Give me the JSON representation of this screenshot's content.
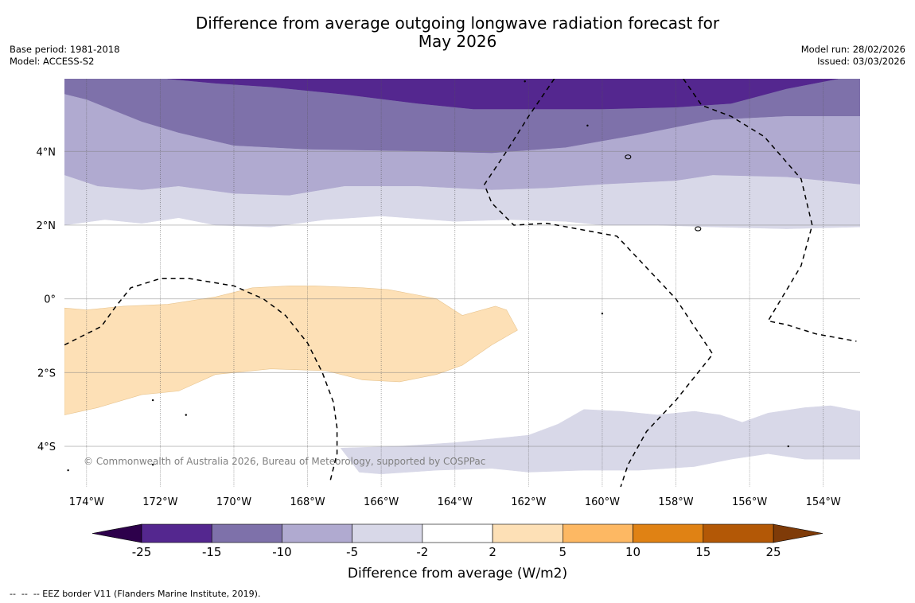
{
  "header": {
    "title_line1": "Difference from average outgoing longwave radiation forecast for",
    "title_line2": "May 2026",
    "base_period": "Base period: 1981-2018",
    "model": "Model: ACCESS-S2",
    "model_run": "Model run: 28/02/2026",
    "issued": "Issued: 03/03/2026"
  },
  "map": {
    "extent": {
      "lon_min": -174.6,
      "lon_max": -153.0,
      "lat_min": -5.1,
      "lat_max": 5.97
    },
    "lon_ticks": [
      {
        "value": -174,
        "label": "174°W"
      },
      {
        "value": -172,
        "label": "172°W"
      },
      {
        "value": -170,
        "label": "170°W"
      },
      {
        "value": -168,
        "label": "168°W"
      },
      {
        "value": -166,
        "label": "166°W"
      },
      {
        "value": -164,
        "label": "164°W"
      },
      {
        "value": -162,
        "label": "162°W"
      },
      {
        "value": -160,
        "label": "160°W"
      },
      {
        "value": -158,
        "label": "158°W"
      },
      {
        "value": -156,
        "label": "156°W"
      },
      {
        "value": -154,
        "label": "154°W"
      }
    ],
    "lat_ticks": [
      {
        "value": 4,
        "label": "4°N"
      },
      {
        "value": 2,
        "label": "2°N"
      },
      {
        "value": 0,
        "label": "0°"
      },
      {
        "value": -2,
        "label": "2°S"
      },
      {
        "value": -4,
        "label": "4°S"
      }
    ],
    "copyright": "© Commonwealth of Australia 2026, Bureau of Meteorology, supported by COSPPac",
    "regions": [
      {
        "name": "band-minus15-to-minus10",
        "class": "-15 to -10",
        "color": "#7e71aa",
        "points": [
          [
            -174.6,
            5.97
          ],
          [
            -153.0,
            5.97
          ],
          [
            -153.0,
            4.95
          ],
          [
            -155.0,
            4.95
          ],
          [
            -157.0,
            4.85
          ],
          [
            -159.0,
            4.45
          ],
          [
            -161.0,
            4.1
          ],
          [
            -163.0,
            3.95
          ],
          [
            -165.0,
            4.0
          ],
          [
            -168.0,
            4.05
          ],
          [
            -170.0,
            4.15
          ],
          [
            -171.5,
            4.5
          ],
          [
            -172.5,
            4.8
          ],
          [
            -174.0,
            5.4
          ],
          [
            -174.6,
            5.55
          ]
        ]
      },
      {
        "name": "band-minus25-to-minus15",
        "class": "-25 to -15",
        "color": "#54278f",
        "points": [
          [
            -171.8,
            5.97
          ],
          [
            -153.6,
            5.97
          ],
          [
            -155.0,
            5.7
          ],
          [
            -156.5,
            5.3
          ],
          [
            -158.0,
            5.2
          ],
          [
            -160.0,
            5.15
          ],
          [
            -162.0,
            5.15
          ],
          [
            -163.5,
            5.15
          ],
          [
            -165.0,
            5.3
          ],
          [
            -167.0,
            5.55
          ],
          [
            -169.0,
            5.75
          ],
          [
            -170.5,
            5.85
          ]
        ]
      },
      {
        "name": "band-minus10-to-minus5",
        "class": "-10 to -5",
        "color": "#b0aad0",
        "points": [
          [
            -174.6,
            5.55
          ],
          [
            -174.0,
            5.4
          ],
          [
            -172.5,
            4.8
          ],
          [
            -171.5,
            4.5
          ],
          [
            -170.0,
            4.15
          ],
          [
            -168.0,
            4.05
          ],
          [
            -165.0,
            4.0
          ],
          [
            -163.0,
            3.95
          ],
          [
            -161.0,
            4.1
          ],
          [
            -159.0,
            4.45
          ],
          [
            -157.0,
            4.85
          ],
          [
            -155.0,
            4.95
          ],
          [
            -153.0,
            4.95
          ],
          [
            -153.0,
            3.1
          ],
          [
            -155.0,
            3.3
          ],
          [
            -157.0,
            3.35
          ],
          [
            -158.0,
            3.2
          ],
          [
            -160.0,
            3.1
          ],
          [
            -161.5,
            3.0
          ],
          [
            -163.0,
            2.95
          ],
          [
            -165.0,
            3.05
          ],
          [
            -167.0,
            3.05
          ],
          [
            -168.5,
            2.8
          ],
          [
            -170.0,
            2.85
          ],
          [
            -171.5,
            3.05
          ],
          [
            -172.5,
            2.95
          ],
          [
            -173.7,
            3.05
          ],
          [
            -174.6,
            3.35
          ]
        ]
      },
      {
        "name": "band-minus5-to-minus2-north",
        "class": "-5 to -2",
        "color": "#d8d8e8",
        "points": [
          [
            -174.6,
            3.35
          ],
          [
            -173.7,
            3.05
          ],
          [
            -172.5,
            2.95
          ],
          [
            -171.5,
            3.05
          ],
          [
            -170.0,
            2.85
          ],
          [
            -168.5,
            2.8
          ],
          [
            -167.0,
            3.05
          ],
          [
            -165.0,
            3.05
          ],
          [
            -163.0,
            2.95
          ],
          [
            -161.5,
            3.0
          ],
          [
            -160.0,
            3.1
          ],
          [
            -158.0,
            3.2
          ],
          [
            -157.0,
            3.35
          ],
          [
            -155.0,
            3.3
          ],
          [
            -153.0,
            3.1
          ],
          [
            -153.0,
            1.95
          ],
          [
            -155.0,
            1.9
          ],
          [
            -157.0,
            1.95
          ],
          [
            -158.5,
            2.0
          ],
          [
            -160.0,
            2.0
          ],
          [
            -161.0,
            2.1
          ],
          [
            -162.5,
            2.15
          ],
          [
            -164.0,
            2.1
          ],
          [
            -166.0,
            2.25
          ],
          [
            -167.5,
            2.15
          ],
          [
            -169.0,
            1.95
          ],
          [
            -170.5,
            2.0
          ],
          [
            -171.5,
            2.2
          ],
          [
            -172.5,
            2.05
          ],
          [
            -173.5,
            2.15
          ],
          [
            -174.6,
            2.0
          ]
        ]
      },
      {
        "name": "band-minus5-to-minus2-south",
        "class": "-5 to -2",
        "color": "#d8d8e8",
        "points": [
          [
            -167.1,
            -4.05
          ],
          [
            -165.5,
            -4.0
          ],
          [
            -164.0,
            -3.9
          ],
          [
            -163.0,
            -3.8
          ],
          [
            -162.0,
            -3.7
          ],
          [
            -161.2,
            -3.4
          ],
          [
            -160.5,
            -3.0
          ],
          [
            -159.5,
            -3.05
          ],
          [
            -158.5,
            -3.15
          ],
          [
            -157.5,
            -3.05
          ],
          [
            -156.8,
            -3.15
          ],
          [
            -156.2,
            -3.35
          ],
          [
            -155.5,
            -3.1
          ],
          [
            -154.5,
            -2.95
          ],
          [
            -153.8,
            -2.9
          ],
          [
            -153.0,
            -3.05
          ],
          [
            -153.0,
            -4.35
          ],
          [
            -154.5,
            -4.35
          ],
          [
            -155.5,
            -4.2
          ],
          [
            -156.5,
            -4.35
          ],
          [
            -157.5,
            -4.55
          ],
          [
            -159.0,
            -4.65
          ],
          [
            -160.5,
            -4.65
          ],
          [
            -162.0,
            -4.7
          ],
          [
            -163.0,
            -4.6
          ],
          [
            -164.5,
            -4.65
          ],
          [
            -166.0,
            -4.75
          ],
          [
            -166.6,
            -4.7
          ]
        ]
      },
      {
        "name": "region-2-to-5",
        "class": "2 to 5",
        "color": "#fde0b6",
        "points": [
          [
            -174.6,
            -0.25
          ],
          [
            -174.0,
            -0.3
          ],
          [
            -173.0,
            -0.2
          ],
          [
            -171.8,
            -0.15
          ],
          [
            -170.5,
            0.05
          ],
          [
            -169.5,
            0.3
          ],
          [
            -168.5,
            0.35
          ],
          [
            -167.8,
            0.35
          ],
          [
            -166.5,
            0.3
          ],
          [
            -165.8,
            0.25
          ],
          [
            -165.0,
            0.1
          ],
          [
            -164.5,
            0.0
          ],
          [
            -163.8,
            -0.45
          ],
          [
            -162.9,
            -0.2
          ],
          [
            -162.6,
            -0.3
          ],
          [
            -162.3,
            -0.85
          ],
          [
            -163.0,
            -1.25
          ],
          [
            -163.8,
            -1.8
          ],
          [
            -164.5,
            -2.05
          ],
          [
            -165.5,
            -2.25
          ],
          [
            -166.5,
            -2.2
          ],
          [
            -167.5,
            -1.95
          ],
          [
            -169.0,
            -1.9
          ],
          [
            -170.5,
            -2.05
          ],
          [
            -171.5,
            -2.5
          ],
          [
            -172.5,
            -2.6
          ],
          [
            -173.7,
            -2.95
          ],
          [
            -174.6,
            -3.15
          ]
        ]
      }
    ],
    "eez_lines": [
      [
        [
          -174.6,
          -1.25
        ],
        [
          -174.0,
          -0.95
        ],
        [
          -173.6,
          -0.75
        ],
        [
          -173.2,
          -0.2
        ],
        [
          -172.8,
          0.3
        ],
        [
          -172.0,
          0.55
        ],
        [
          -171.2,
          0.55
        ],
        [
          -170.0,
          0.35
        ],
        [
          -169.2,
          0.0
        ],
        [
          -168.6,
          -0.45
        ],
        [
          -168.0,
          -1.2
        ],
        [
          -167.6,
          -2.0
        ],
        [
          -167.3,
          -2.8
        ],
        [
          -167.2,
          -3.5
        ],
        [
          -167.2,
          -4.2
        ],
        [
          -167.4,
          -5.0
        ]
      ],
      [
        [
          -161.3,
          5.97
        ],
        [
          -162.0,
          4.95
        ],
        [
          -162.6,
          4.0
        ],
        [
          -163.2,
          3.1
        ],
        [
          -163.0,
          2.6
        ],
        [
          -162.4,
          2.0
        ],
        [
          -161.5,
          2.05
        ],
        [
          -159.6,
          1.7
        ],
        [
          -158.8,
          0.85
        ],
        [
          -158.0,
          0.0
        ],
        [
          -157.0,
          -1.5
        ],
        [
          -158.0,
          -2.75
        ],
        [
          -158.8,
          -3.6
        ],
        [
          -159.3,
          -4.5
        ],
        [
          -159.5,
          -5.1
        ]
      ],
      [
        [
          -157.8,
          5.97
        ],
        [
          -157.3,
          5.25
        ],
        [
          -156.5,
          4.95
        ],
        [
          -155.6,
          4.4
        ],
        [
          -154.6,
          3.25
        ],
        [
          -154.3,
          2.0
        ],
        [
          -154.6,
          0.9
        ],
        [
          -155.5,
          -0.6
        ],
        [
          -155.0,
          -0.7
        ],
        [
          -154.2,
          -0.95
        ],
        [
          -153.1,
          -1.15
        ]
      ]
    ],
    "islands": [
      {
        "lon": -159.3,
        "lat": 3.85,
        "kind": "atoll"
      },
      {
        "lon": -157.4,
        "lat": 1.9,
        "kind": "atoll"
      },
      {
        "lon": -172.2,
        "lat": -2.75,
        "kind": "dot"
      },
      {
        "lon": -171.3,
        "lat": -3.15,
        "kind": "dot"
      },
      {
        "lon": -172.2,
        "lat": -4.5,
        "kind": "dot"
      },
      {
        "lon": -174.5,
        "lat": -4.65,
        "kind": "dot"
      },
      {
        "lon": -160.0,
        "lat": -0.4,
        "kind": "dot"
      },
      {
        "lon": -154.95,
        "lat": -4.0,
        "kind": "dot"
      },
      {
        "lon": -160.4,
        "lat": 4.7,
        "kind": "dot"
      },
      {
        "lon": -162.1,
        "lat": 5.9,
        "kind": "dot"
      }
    ]
  },
  "colorbar": {
    "label": "Difference from average (W/m2)",
    "under_color": "#2d004b",
    "over_color": "#7f3b08",
    "boundaries": [
      "-25",
      "-15",
      "-10",
      "-5",
      "-2",
      "2",
      "5",
      "10",
      "15",
      "25"
    ],
    "colors": [
      "#54278f",
      "#7e71aa",
      "#b0aad0",
      "#d8d8e8",
      "#ffffff",
      "#fde0b6",
      "#fdb863",
      "#e08214",
      "#b35806"
    ]
  },
  "footer": {
    "legend_text": "--  --  -- EEZ border V11 (Flanders Marine Institute, 2019)."
  }
}
